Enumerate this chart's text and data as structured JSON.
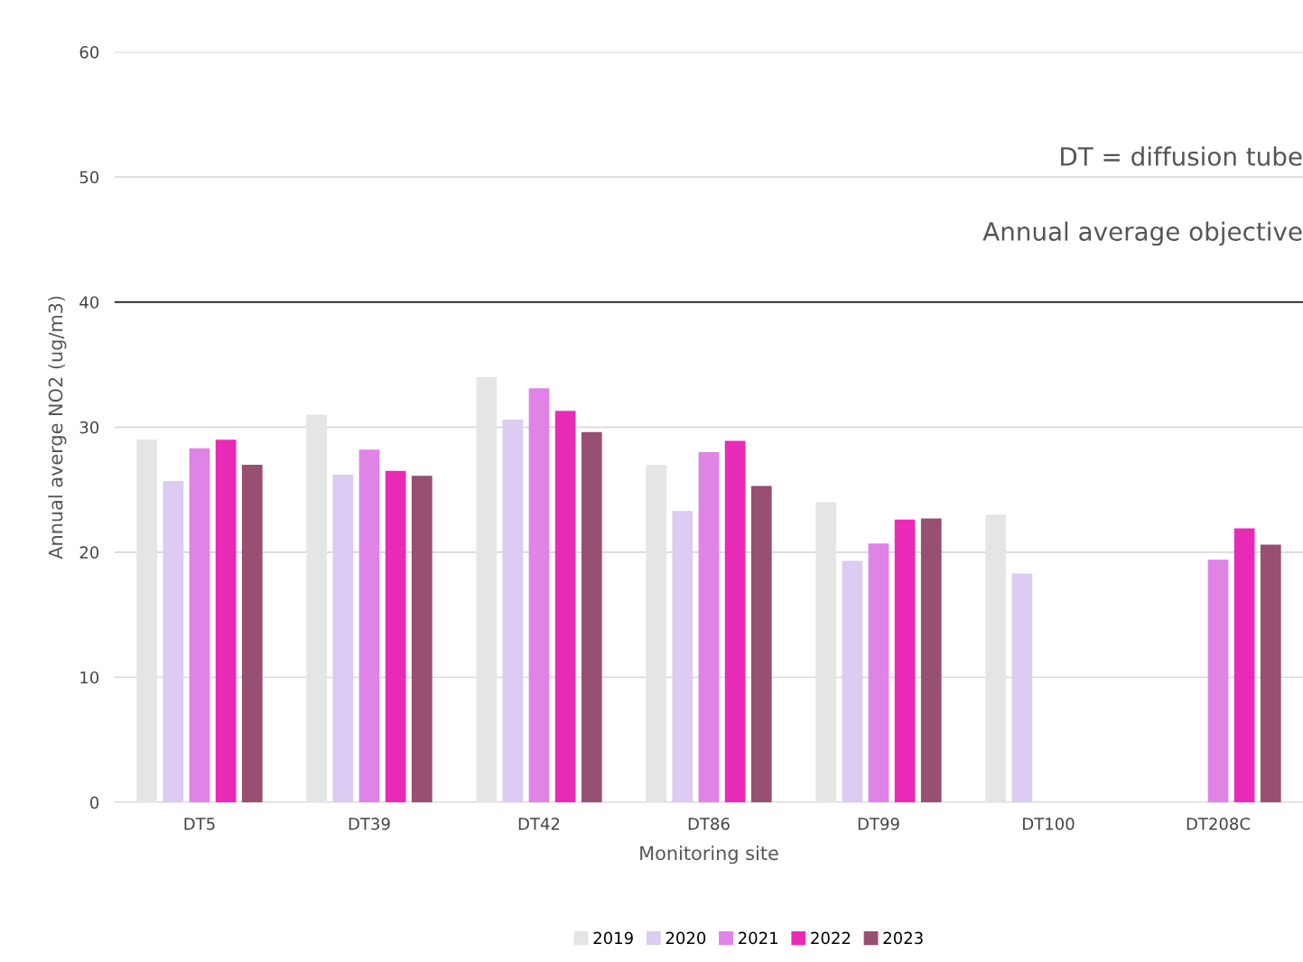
{
  "chart_data": {
    "type": "bar",
    "xlabel": "Monitoring site",
    "ylabel": "Annual averge NO2 (ug/m3)",
    "categories": [
      "DT5",
      "DT39",
      "DT42",
      "DT86",
      "DT99",
      "DT100",
      "DT208C"
    ],
    "series": [
      {
        "name": "2019",
        "color": "#e5e5e5",
        "values": [
          29,
          31,
          34,
          27,
          24,
          23,
          null
        ]
      },
      {
        "name": "2020",
        "color": "#dccbf2",
        "values": [
          25.7,
          26.2,
          30.6,
          23.3,
          19.3,
          18.3,
          null
        ]
      },
      {
        "name": "2021",
        "color": "#df83e6",
        "values": [
          28.3,
          28.2,
          33.1,
          28,
          20.7,
          null,
          19.4
        ]
      },
      {
        "name": "2022",
        "color": "#e92ab7",
        "values": [
          29,
          26.5,
          31.3,
          28.9,
          22.6,
          null,
          21.9
        ]
      },
      {
        "name": "2023",
        "color": "#974f72",
        "values": [
          27,
          26.1,
          29.6,
          25.3,
          22.7,
          null,
          20.6
        ]
      }
    ],
    "ylim": [
      0,
      60
    ],
    "yticks": [
      0,
      10,
      20,
      30,
      40,
      50,
      60
    ],
    "grid": "y",
    "legend": "bottom",
    "ref_lines": [
      {
        "axis": "y",
        "value": 40,
        "label": "Annual average objective",
        "color": "#000000"
      }
    ],
    "annotations": [
      "DT = diffusion tube"
    ]
  }
}
